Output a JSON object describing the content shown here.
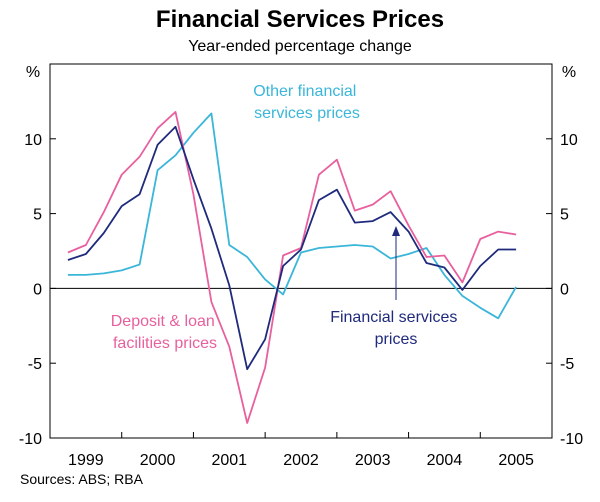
{
  "chart_data": {
    "type": "line",
    "title": "Financial Services Prices",
    "subtitle": "Year-ended percentage change",
    "ylabel_left": "%",
    "ylabel_right": "%",
    "ylim": [
      -10,
      15
    ],
    "yticks": [
      -10,
      -5,
      0,
      5,
      10
    ],
    "ytick_labels": [
      "-10",
      "-5",
      "0",
      "5",
      "10"
    ],
    "xlim": [
      1998.625,
      2005.625
    ],
    "year_labels": [
      "1999",
      "2000",
      "2001",
      "2002",
      "2003",
      "2004",
      "2005"
    ],
    "year_positions": [
      1999.125,
      2000.125,
      2001.125,
      2002.125,
      2003.125,
      2004.125,
      2005.125
    ],
    "year_separators": [
      1999.625,
      2000.625,
      2001.625,
      2002.625,
      2003.625,
      2004.625
    ],
    "x": [
      1998.875,
      1999.125,
      1999.375,
      1999.625,
      1999.875,
      2000.125,
      2000.375,
      2000.625,
      2000.875,
      2001.125,
      2001.375,
      2001.625,
      2001.875,
      2002.125,
      2002.375,
      2002.625,
      2002.875,
      2003.125,
      2003.375,
      2003.625,
      2003.875,
      2004.125,
      2004.375,
      2004.625,
      2004.875,
      2005.125
    ],
    "series": [
      {
        "name": "Other financial services prices",
        "color": "#3ab6d9",
        "values": [
          0.9,
          0.9,
          1.0,
          1.2,
          1.6,
          7.9,
          8.9,
          10.4,
          11.7,
          2.9,
          2.1,
          0.6,
          -0.4,
          2.4,
          2.7,
          2.8,
          2.9,
          2.8,
          2.0,
          2.3,
          2.7,
          0.9,
          -0.5,
          -1.3,
          -2.0,
          0.1
        ]
      },
      {
        "name": "Deposit & loan facilities prices",
        "color": "#e8609e",
        "values": [
          2.4,
          2.9,
          5.1,
          7.6,
          8.8,
          10.7,
          11.8,
          6.3,
          -0.9,
          -3.9,
          -9.0,
          -5.3,
          2.2,
          2.7,
          7.6,
          8.6,
          5.2,
          5.6,
          6.5,
          4.2,
          2.1,
          2.2,
          0.4,
          3.3,
          3.8,
          3.6
        ]
      },
      {
        "name": "Financial services prices",
        "color": "#1f2a7c",
        "values": [
          1.9,
          2.3,
          3.7,
          5.5,
          6.3,
          9.6,
          10.8,
          7.3,
          4.0,
          0.2,
          -5.4,
          -3.4,
          1.5,
          2.6,
          5.9,
          6.6,
          4.4,
          4.5,
          5.1,
          3.8,
          1.7,
          1.4,
          -0.1,
          1.5,
          2.6,
          2.6
        ]
      }
    ],
    "annotations": {
      "other_line1": "Other financial",
      "other_line2": "services prices",
      "deposit_line1": "Deposit & loan",
      "deposit_line2": "facilities prices",
      "fsp_line1": "Financial services",
      "fsp_line2": "prices"
    },
    "source": "Sources: ABS; RBA"
  }
}
